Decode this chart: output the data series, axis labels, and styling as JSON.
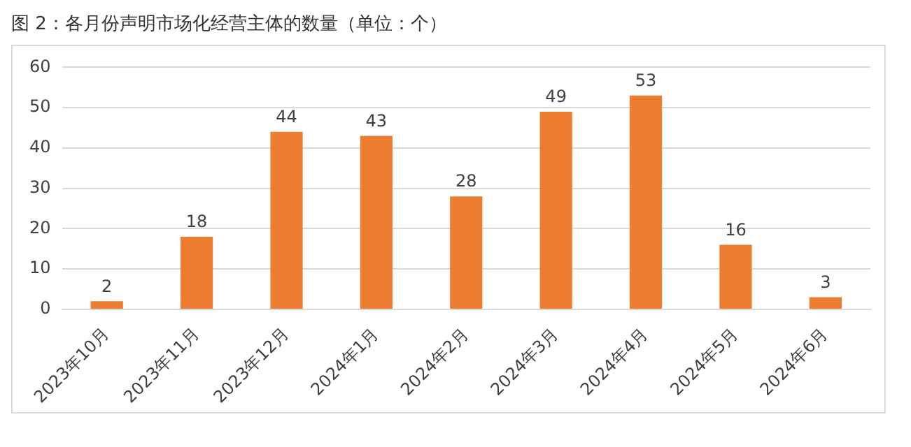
{
  "chart_data": {
    "type": "bar",
    "title": "图 2：各月份声明市场化经营主体的数量（单位：个）",
    "categories": [
      "2023年10月",
      "2023年11月",
      "2023年12月",
      "2024年1月",
      "2024年2月",
      "2024年3月",
      "2024年4月",
      "2024年5月",
      "2024年6月"
    ],
    "values": [
      2,
      18,
      44,
      43,
      28,
      49,
      53,
      16,
      3
    ],
    "color": "#ed7d31",
    "ylim": [
      0,
      60
    ],
    "yticks": [
      0,
      10,
      20,
      30,
      40,
      50,
      60
    ],
    "grid": "y",
    "legend": false,
    "data_labels": true
  }
}
